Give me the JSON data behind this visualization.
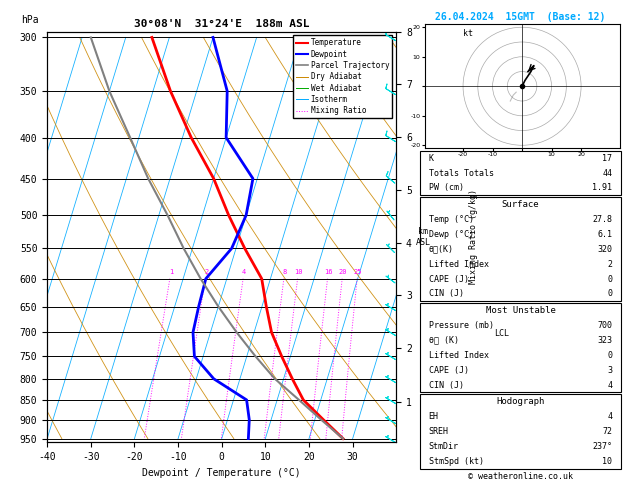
{
  "title_left": "30°08'N  31°24'E  188m ASL",
  "title_right": "26.04.2024  15GMT  (Base: 12)",
  "xlabel": "Dewpoint / Temperature (°C)",
  "ylabel_left": "hPa",
  "pressure_ticks": [
    300,
    350,
    400,
    450,
    500,
    550,
    600,
    650,
    700,
    750,
    800,
    850,
    900,
    950
  ],
  "xlim": [
    -40,
    40
  ],
  "xticks": [
    -40,
    -30,
    -20,
    -10,
    0,
    10,
    20,
    30
  ],
  "km_ticks": [
    1,
    2,
    3,
    4,
    5,
    6,
    7,
    8
  ],
  "km_pressures": [
    843,
    707,
    595,
    501,
    422,
    355,
    299,
    252
  ],
  "mixing_ratios": [
    1,
    2,
    4,
    8,
    10,
    16,
    20,
    25
  ],
  "lcl_pressure": 700,
  "temp_profile": {
    "pressure": [
      950,
      900,
      850,
      800,
      750,
      700,
      650,
      600,
      550,
      500,
      450,
      400,
      350,
      300
    ],
    "temp": [
      27.8,
      22.0,
      16.0,
      12.0,
      8.0,
      4.0,
      1.0,
      -2.0,
      -8.0,
      -14.0,
      -20.0,
      -28.0,
      -36.0,
      -44.0
    ]
  },
  "dewpoint_profile": {
    "pressure": [
      950,
      900,
      850,
      800,
      750,
      700,
      650,
      600,
      550,
      500,
      450,
      400,
      350,
      300
    ],
    "dewp": [
      6.1,
      5.0,
      3.0,
      -6.0,
      -12.0,
      -14.0,
      -14.5,
      -14.8,
      -11.0,
      -10.0,
      -11.0,
      -20.0,
      -23.0,
      -30.0
    ]
  },
  "parcel_profile": {
    "pressure": [
      950,
      900,
      850,
      800,
      750,
      700,
      650,
      600,
      550,
      500,
      450,
      400,
      350,
      300
    ],
    "temp": [
      27.8,
      21.5,
      15.0,
      8.0,
      2.0,
      -4.0,
      -10.0,
      -16.0,
      -22.0,
      -28.0,
      -35.0,
      -42.0,
      -50.0,
      -58.0
    ]
  },
  "temp_color": "#ff0000",
  "dewp_color": "#0000ff",
  "parcel_color": "#808080",
  "dry_adiabat_color": "#cc8800",
  "wet_adiabat_color": "#00aa00",
  "isotherm_color": "#00aaff",
  "mixing_ratio_color": "#ff00ff",
  "wind_color": "#00dddd",
  "stats": {
    "K": 17,
    "Totals_Totals": 44,
    "PW_cm": 1.91,
    "Surface_Temp": 27.8,
    "Surface_Dewp": 6.1,
    "Surface_theta_e": 320,
    "Surface_LI": 2,
    "Surface_CAPE": 0,
    "Surface_CIN": 0,
    "MU_Pressure": 700,
    "MU_theta_e": 323,
    "MU_LI": 0,
    "MU_CAPE": 3,
    "MU_CIN": 4,
    "EH": 4,
    "SREH": 72,
    "StmDir": 237,
    "StmSpd": 10
  }
}
